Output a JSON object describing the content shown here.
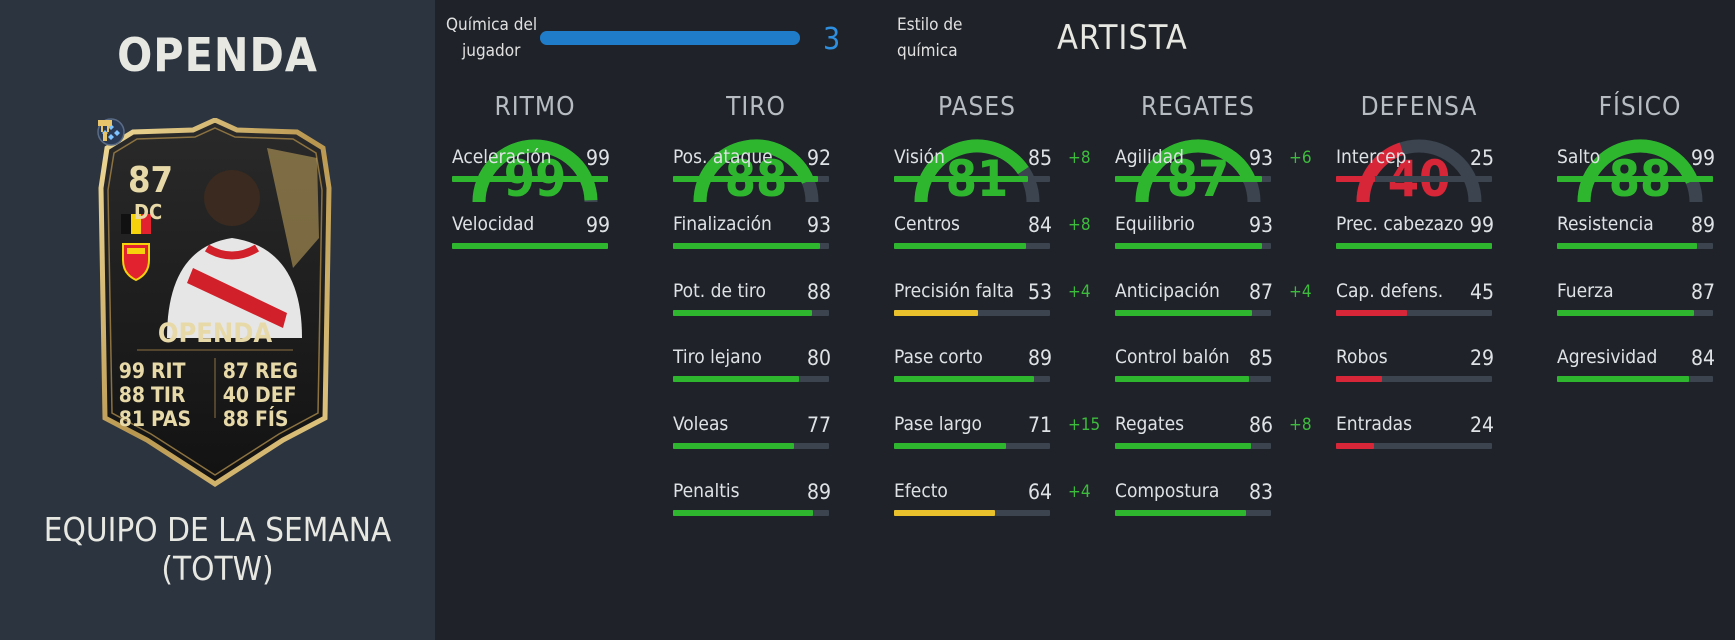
{
  "player": {
    "name": "OPENDA",
    "subtitle": "EQUIPO DE LA SEMANA (TOTW)"
  },
  "card": {
    "rating": "87",
    "position": "DC",
    "name": "OPENDA",
    "stats_left": [
      {
        "value": "99",
        "key": "RIT"
      },
      {
        "value": "88",
        "key": "TIR"
      },
      {
        "value": "81",
        "key": "PAS"
      }
    ],
    "stats_right": [
      {
        "value": "87",
        "key": "REG"
      },
      {
        "value": "40",
        "key": "DEF"
      },
      {
        "value": "88",
        "key": "FÍS"
      }
    ],
    "nation_icon": "belgium-flag-icon",
    "club_icon": "rc-lens-crest-icon",
    "chem_icon": "chemistry-diamond-icon",
    "style_icon": "artist-brush-icon"
  },
  "chemistry": {
    "label_line1": "Química del",
    "label_line2": "jugador",
    "value": "3",
    "fill_fraction": 1.0,
    "style_label_line1": "Estilo de",
    "style_label_line2": "química",
    "style_value": "ARTISTA"
  },
  "colors": {
    "green": "#2fb62f",
    "yellow": "#e8c12c",
    "red": "#d72638",
    "blue": "#1e7cc9",
    "track": "#3c4450"
  },
  "attributes": [
    {
      "title": "RITMO",
      "value": "99",
      "tier": "green",
      "stats": [
        {
          "name": "Aceleración",
          "value": "99",
          "bonus": ""
        },
        {
          "name": "Velocidad",
          "value": "99",
          "bonus": ""
        }
      ]
    },
    {
      "title": "TIRO",
      "value": "88",
      "tier": "green",
      "stats": [
        {
          "name": "Pos. ataque",
          "value": "92",
          "bonus": ""
        },
        {
          "name": "Finalización",
          "value": "93",
          "bonus": ""
        },
        {
          "name": "Pot. de tiro",
          "value": "88",
          "bonus": ""
        },
        {
          "name": "Tiro lejano",
          "value": "80",
          "bonus": ""
        },
        {
          "name": "Voleas",
          "value": "77",
          "bonus": ""
        },
        {
          "name": "Penaltis",
          "value": "89",
          "bonus": ""
        }
      ]
    },
    {
      "title": "PASES",
      "value": "81",
      "tier": "green",
      "stats": [
        {
          "name": "Visión",
          "value": "85",
          "bonus": "+8"
        },
        {
          "name": "Centros",
          "value": "84",
          "bonus": "+8"
        },
        {
          "name": "Precisión falta",
          "value": "53",
          "bonus": "+4"
        },
        {
          "name": "Pase corto",
          "value": "89",
          "bonus": ""
        },
        {
          "name": "Pase largo",
          "value": "71",
          "bonus": "+15"
        },
        {
          "name": "Efecto",
          "value": "64",
          "bonus": "+4"
        }
      ]
    },
    {
      "title": "REGATES",
      "value": "87",
      "tier": "green",
      "stats": [
        {
          "name": "Agilidad",
          "value": "93",
          "bonus": "+6"
        },
        {
          "name": "Equilibrio",
          "value": "93",
          "bonus": ""
        },
        {
          "name": "Anticipación",
          "value": "87",
          "bonus": "+4"
        },
        {
          "name": "Control balón",
          "value": "85",
          "bonus": ""
        },
        {
          "name": "Regates",
          "value": "86",
          "bonus": "+8"
        },
        {
          "name": "Compostura",
          "value": "83",
          "bonus": ""
        }
      ]
    },
    {
      "title": "DEFENSA",
      "value": "40",
      "tier": "red",
      "stats": [
        {
          "name": "Intercep.",
          "value": "25",
          "bonus": ""
        },
        {
          "name": "Prec. cabezazo",
          "value": "99",
          "bonus": ""
        },
        {
          "name": "Cap. defens.",
          "value": "45",
          "bonus": ""
        },
        {
          "name": "Robos",
          "value": "29",
          "bonus": ""
        },
        {
          "name": "Entradas",
          "value": "24",
          "bonus": ""
        }
      ]
    },
    {
      "title": "FÍSICO",
      "value": "88",
      "tier": "green",
      "stats": [
        {
          "name": "Salto",
          "value": "99",
          "bonus": ""
        },
        {
          "name": "Resistencia",
          "value": "89",
          "bonus": ""
        },
        {
          "name": "Fuerza",
          "value": "87",
          "bonus": ""
        },
        {
          "name": "Agresividad",
          "value": "84",
          "bonus": ""
        }
      ]
    }
  ]
}
